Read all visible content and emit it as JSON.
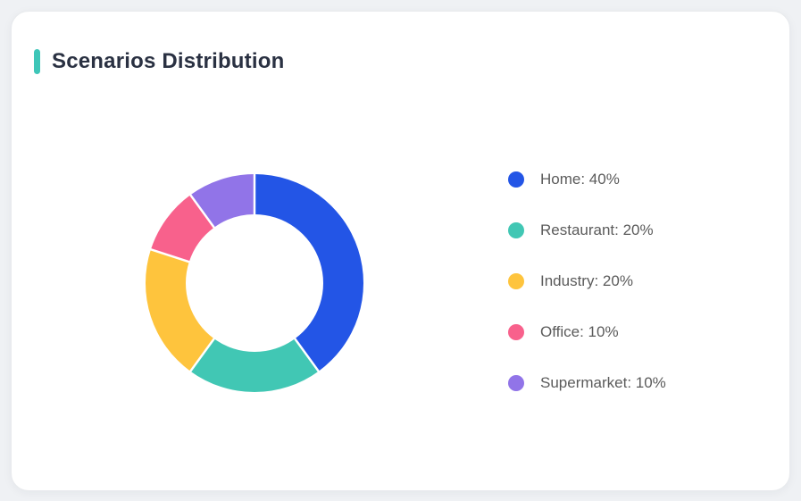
{
  "page": {
    "background": "#EFF1F4"
  },
  "card": {
    "title": "Scenarios Distribution",
    "accent_color": "#3EC6B8",
    "background": "#FFFFFF"
  },
  "chart_data": {
    "type": "pie",
    "subtype": "donut",
    "title": "Scenarios Distribution",
    "labels": [
      "Home",
      "Restaurant",
      "Industry",
      "Office",
      "Supermarket"
    ],
    "values": [
      40,
      20,
      20,
      10,
      10
    ],
    "unit": "%",
    "colors": [
      "#2355E6",
      "#41C7B4",
      "#FEC43D",
      "#F8618C",
      "#9174E8"
    ],
    "legend_position": "right",
    "legend_items": [
      {
        "label": "Home",
        "value": 40,
        "display": "Home: 40%",
        "color": "#2355E6"
      },
      {
        "label": "Restaurant",
        "value": 20,
        "display": "Restaurant: 20%",
        "color": "#41C7B4"
      },
      {
        "label": "Industry",
        "value": 20,
        "display": "Industry: 20%",
        "color": "#FEC43D"
      },
      {
        "label": "Office",
        "value": 10,
        "display": "Office: 10%",
        "color": "#F8618C"
      },
      {
        "label": "Supermarket",
        "value": 10,
        "display": "Supermarket: 10%",
        "color": "#9174E8"
      }
    ],
    "start_angle_deg": 0,
    "direction": "clockwise",
    "inner_radius_ratio": 0.63,
    "slice_gap_color": "#FFFFFF"
  }
}
